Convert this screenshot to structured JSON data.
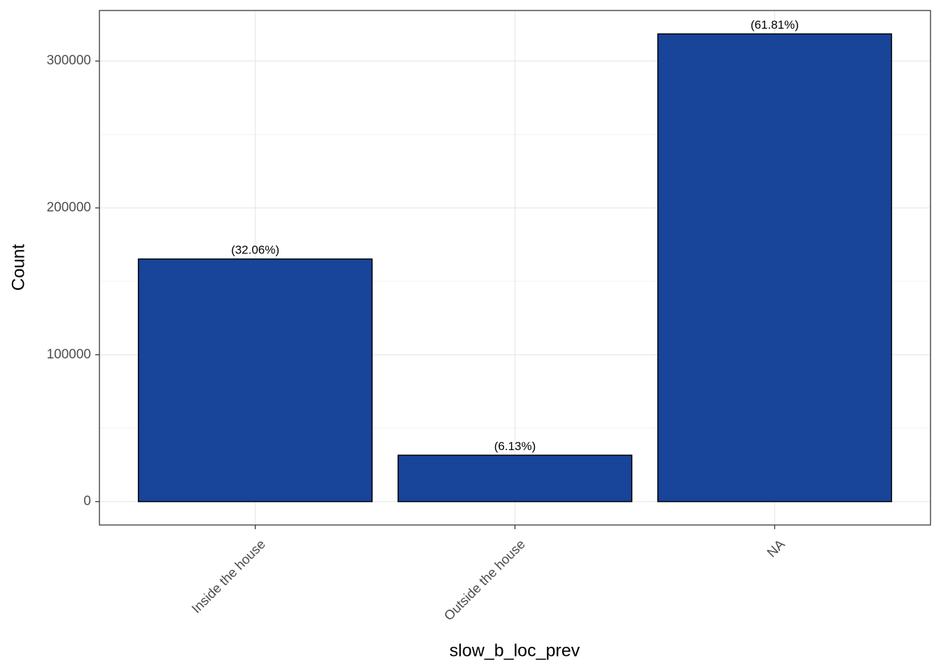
{
  "chart_data": {
    "type": "bar",
    "x_label": "slow_b_loc_prev",
    "y_label": "Count",
    "categories": [
      "Inside the house",
      "Outside the house",
      "NA"
    ],
    "values": [
      165200,
      31600,
      318500
    ],
    "annotations": [
      "(32.06%)",
      "(6.13%)",
      "(61.81%)"
    ],
    "color": "#184499",
    "ylim": [
      -15925,
      334425
    ],
    "yticks": [
      0,
      100000,
      200000,
      300000
    ],
    "minor_yticks": [
      50000,
      150000,
      250000
    ],
    "grid": true
  }
}
